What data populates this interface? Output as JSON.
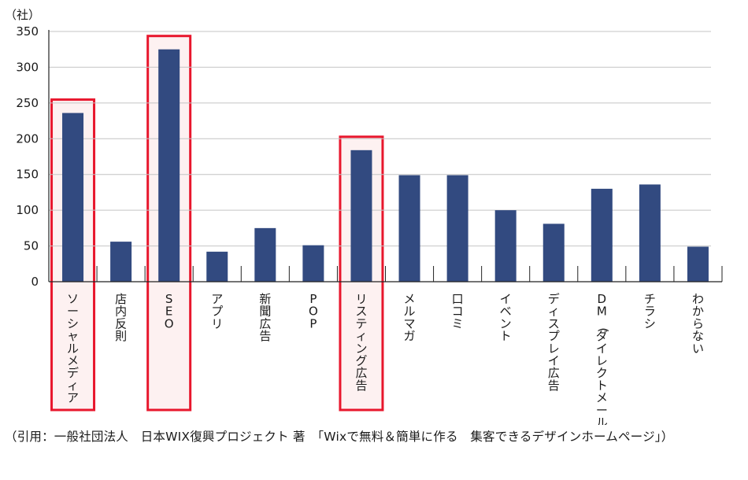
{
  "chart_data": {
    "type": "bar",
    "unit_label": "（社）",
    "categories": [
      "ソーシャルメディア",
      "店内反則",
      "SEO",
      "アプリ",
      "新聞広告",
      "POP",
      "リスティング広告",
      "メルマガ",
      "口コミ",
      "イベント",
      "ディスプレイ広告",
      "DM(ダイレクトメール)",
      "チラシ",
      "わからない"
    ],
    "values": [
      236,
      56,
      325,
      42,
      75,
      51,
      184,
      149,
      149,
      100,
      81,
      130,
      136,
      49
    ],
    "highlighted": [
      "ソーシャルメディア",
      "SEO",
      "リスティング広告"
    ],
    "yticks": [
      0,
      50,
      100,
      150,
      200,
      250,
      300,
      350
    ],
    "ylim": [
      0,
      350
    ],
    "grid": true,
    "legend": "none",
    "colors": {
      "bar": "#324a80",
      "highlight_border": "#e8172d",
      "highlight_fill": "#fdf1f1",
      "grid": "#c4c4c4"
    }
  },
  "caption": "（引用：一般社団法人　日本WIX復興プロジェクト 著　「Wixで無料＆簡単に作る　集客できるデザインホームページ」）"
}
